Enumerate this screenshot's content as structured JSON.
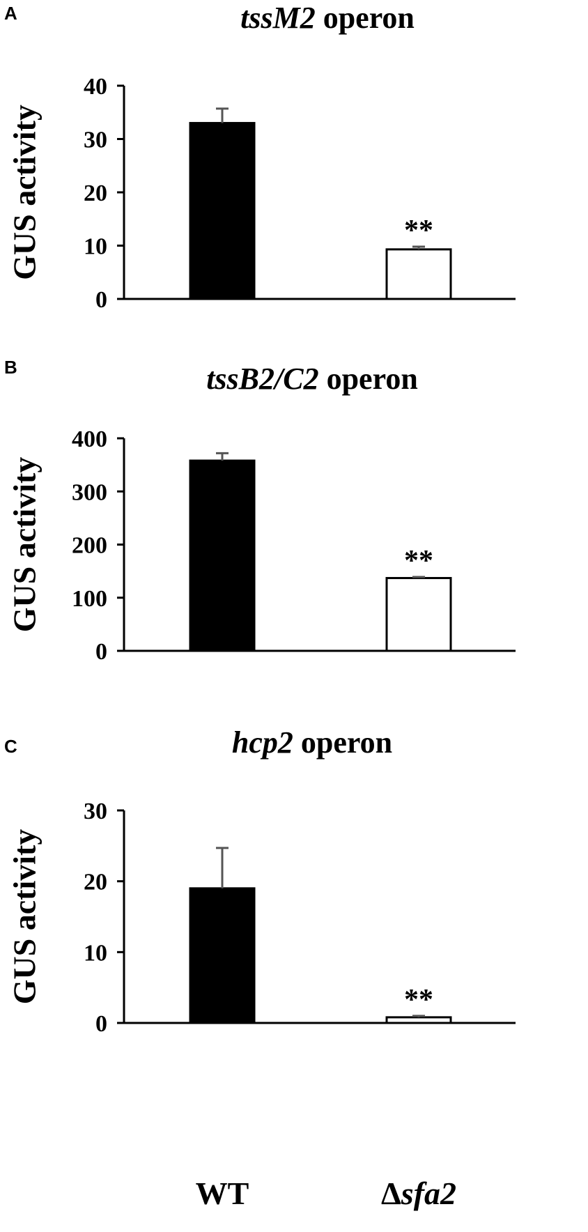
{
  "figure": {
    "x_categories": [
      {
        "prefix": "",
        "main": "WT"
      },
      {
        "prefix": "Δ",
        "main": "sfa2"
      }
    ]
  },
  "chart_data": [
    {
      "type": "bar",
      "panel": "A",
      "title_italic": "tssM2",
      "title_rest": " operon",
      "ylabel": "GUS activity",
      "categories": [
        "WT",
        "Δsfa2"
      ],
      "values": [
        33,
        9.3
      ],
      "errors": [
        2.7,
        0.5
      ],
      "bar_fills": [
        "#000000",
        "#ffffff"
      ],
      "annotations": [
        "",
        "**"
      ],
      "ylim": [
        0,
        40
      ],
      "yticks": [
        0,
        10,
        20,
        30,
        40
      ],
      "grid": false,
      "legend": "none"
    },
    {
      "type": "bar",
      "panel": "B",
      "title_italic": "tssB2/C2",
      "title_rest": " operon",
      "ylabel": "GUS activity",
      "categories": [
        "WT",
        "Δsfa2"
      ],
      "values": [
        358,
        137
      ],
      "errors": [
        14,
        2
      ],
      "bar_fills": [
        "#000000",
        "#ffffff"
      ],
      "annotations": [
        "",
        "**"
      ],
      "ylim": [
        0,
        400
      ],
      "yticks": [
        0,
        100,
        200,
        300,
        400
      ],
      "grid": false,
      "legend": "none"
    },
    {
      "type": "bar",
      "panel": "C",
      "title_italic": "hcp2",
      "title_rest": " operon",
      "ylabel": "GUS activity",
      "categories": [
        "WT",
        "Δsfa2"
      ],
      "values": [
        19,
        0.8
      ],
      "errors": [
        5.7,
        0.2
      ],
      "bar_fills": [
        "#000000",
        "#ffffff"
      ],
      "annotations": [
        "",
        "**"
      ],
      "ylim": [
        0,
        30
      ],
      "yticks": [
        0,
        10,
        20,
        30
      ],
      "grid": false,
      "legend": "none"
    }
  ]
}
